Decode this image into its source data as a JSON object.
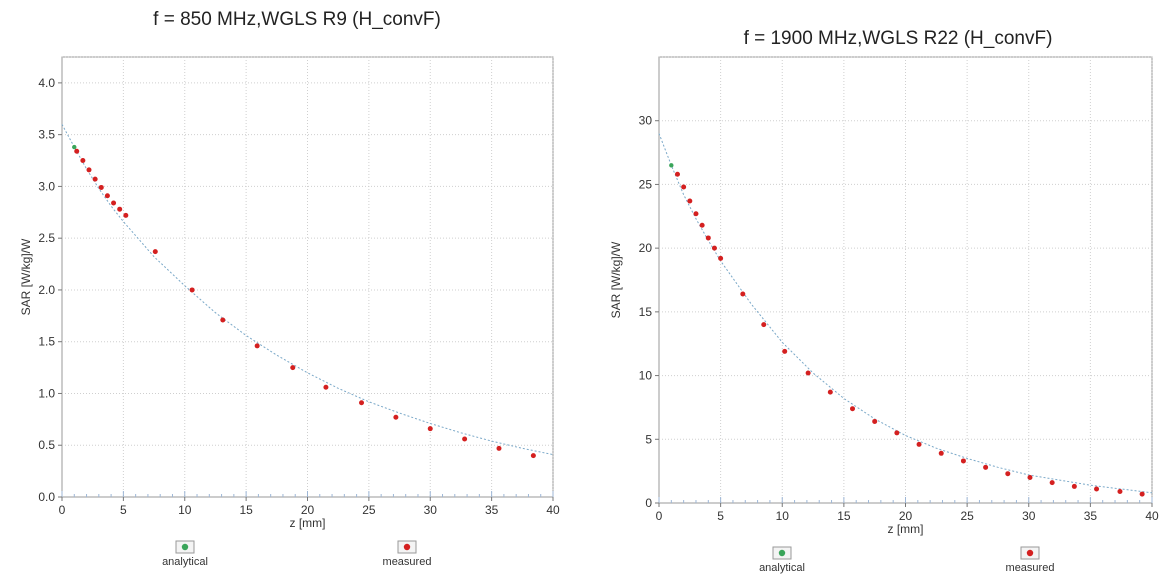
{
  "chart_data": [
    {
      "type": "scatter",
      "title": "f = 850 MHz,WGLS R9 (H_convF)",
      "xlabel": "z [mm]",
      "ylabel": "SAR [W/kg]/W",
      "xlim": [
        0,
        40
      ],
      "ylim": [
        0,
        4.25
      ],
      "xticks": [
        "0",
        "5",
        "10",
        "15",
        "20",
        "25",
        "30",
        "35",
        "40"
      ],
      "yticks": [
        "0.0",
        "0.5",
        "1.0",
        "1.5",
        "2.0",
        "2.5",
        "3.0",
        "3.5",
        "4.0"
      ],
      "grid": true,
      "legend": "bottom",
      "series": [
        {
          "name": "analytical",
          "color": "#3aa55a",
          "x": [
            0,
            1,
            2,
            3,
            4,
            5,
            7.5,
            10,
            12.5,
            15,
            17.5,
            20,
            22.5,
            25,
            27.5,
            30,
            32.5,
            35,
            37.5,
            40
          ],
          "y": [
            3.6,
            3.38,
            3.17,
            2.98,
            2.81,
            2.66,
            2.32,
            2.04,
            1.78,
            1.56,
            1.37,
            1.2,
            1.05,
            0.92,
            0.81,
            0.71,
            0.62,
            0.54,
            0.47,
            0.41
          ]
        },
        {
          "name": "measured",
          "color": "#d42020",
          "x": [
            1.2,
            1.7,
            2.2,
            2.7,
            3.2,
            3.7,
            4.2,
            4.7,
            5.2,
            7.6,
            10.6,
            13.1,
            15.9,
            18.8,
            21.5,
            24.4,
            27.2,
            30.0,
            32.8,
            35.6,
            38.4
          ],
          "y": [
            3.34,
            3.25,
            3.16,
            3.07,
            2.99,
            2.91,
            2.84,
            2.78,
            2.72,
            2.37,
            2.0,
            1.71,
            1.46,
            1.25,
            1.06,
            0.91,
            0.77,
            0.66,
            0.56,
            0.47,
            0.4
          ]
        }
      ]
    },
    {
      "type": "scatter",
      "title": "f = 1900 MHz,WGLS R22 (H_convF)",
      "xlabel": "z [mm]",
      "ylabel": "SAR [W/kg]/W",
      "xlim": [
        0,
        40
      ],
      "ylim": [
        0,
        35
      ],
      "xticks": [
        "0",
        "5",
        "10",
        "15",
        "20",
        "25",
        "30",
        "35",
        "40"
      ],
      "yticks": [
        "0",
        "5",
        "10",
        "15",
        "20",
        "25",
        "30"
      ],
      "grid": true,
      "legend": "bottom",
      "series": [
        {
          "name": "analytical",
          "color": "#3aa55a",
          "x": [
            0,
            1,
            2,
            3,
            4,
            5,
            7.5,
            10,
            12.5,
            15,
            17.5,
            20,
            22.5,
            25,
            27.5,
            30,
            32.5,
            35,
            37.5,
            40
          ],
          "y": [
            29.0,
            26.5,
            24.2,
            22.3,
            20.6,
            19.0,
            15.6,
            12.6,
            10.2,
            8.2,
            6.6,
            5.3,
            4.3,
            3.5,
            2.8,
            2.2,
            1.8,
            1.4,
            1.1,
            0.8
          ]
        },
        {
          "name": "measured",
          "color": "#d42020",
          "x": [
            1.5,
            2.0,
            2.5,
            3.0,
            3.5,
            4.0,
            4.5,
            5.0,
            6.8,
            8.5,
            10.2,
            12.1,
            13.9,
            15.7,
            17.5,
            19.3,
            21.1,
            22.9,
            24.7,
            26.5,
            28.3,
            30.1,
            31.9,
            33.7,
            35.5,
            37.4,
            39.2
          ],
          "y": [
            25.8,
            24.8,
            23.7,
            22.7,
            21.8,
            20.8,
            20.0,
            19.2,
            16.4,
            14.0,
            11.9,
            10.2,
            8.7,
            7.4,
            6.4,
            5.5,
            4.6,
            3.9,
            3.3,
            2.8,
            2.3,
            2.0,
            1.6,
            1.3,
            1.1,
            0.9,
            0.7
          ]
        }
      ]
    }
  ]
}
